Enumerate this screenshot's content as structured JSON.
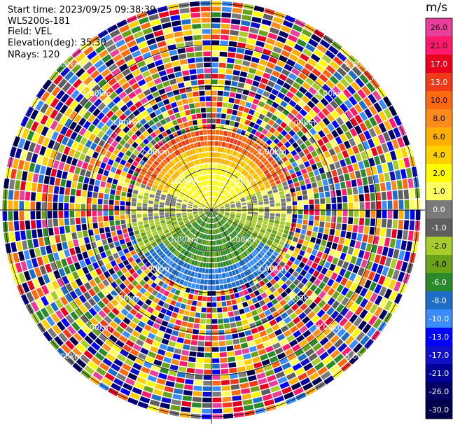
{
  "info": {
    "start_time": "Start time: 2023/09/25 09:38:39",
    "instrument": "WLS200s-181",
    "field": "Field: VEL",
    "elevation": "Elevation(deg): 35.30",
    "nrays": "NRays: 120"
  },
  "chart_data": {
    "type": "heatmap",
    "projection": "polar (PPI)",
    "field": "VEL",
    "units": "m/s",
    "n_rays": 120,
    "elevation_deg": 35.3,
    "range_ring_labels": [
      "1.00km",
      "2.00km",
      "3.00km",
      "4.00km",
      "5.00km"
    ],
    "colorbar": {
      "unit": "m/s",
      "ticks": [
        "26.0",
        "21.0",
        "17.0",
        "13.0",
        "10.0",
        "8.0",
        "6.0",
        "4.0",
        "2.0",
        "1.0",
        "0.0",
        "-1.0",
        "-2.0",
        "-4.0",
        "-6.0",
        "-8.0",
        "-10.0",
        "-13.0",
        "-17.0",
        "-21.0",
        "-26.0",
        "-30.0"
      ],
      "colors": [
        "#e8409a",
        "#ff1a6e",
        "#e8001e",
        "#f03a1a",
        "#ff6a10",
        "#ff8c1a",
        "#ffb000",
        "#ffd000",
        "#fffb00",
        "#ffff60",
        "#7a7a7a",
        "#5f5f5f",
        "#a8cc2a",
        "#6aa21a",
        "#2a8a2a",
        "#1e6ec8",
        "#3a8cff",
        "#0000ff",
        "#1010c8",
        "#000096",
        "#000064",
        "#00004a"
      ]
    }
  }
}
